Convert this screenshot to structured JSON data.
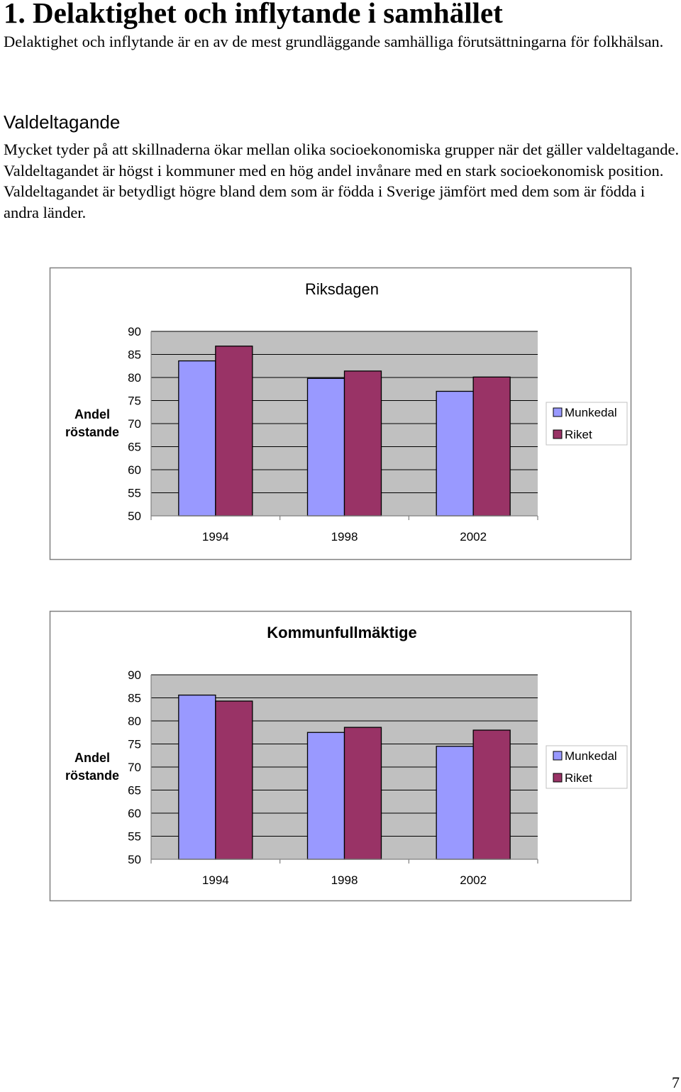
{
  "heading": "1. Delaktighet och inflytande i samhället",
  "intro_paragraph": "Delaktighet och inflytande är en av de mest grundläggande samhälliga förutsättningarna för folkhälsan.",
  "subheading": "Valdeltagande",
  "body_paragraph": "Mycket tyder på att skillnaderna ökar mellan olika socioekonomiska grupper när det gäller valdeltagande. Valdeltagandet är högst i kommuner med en hög andel invånare med en stark socioekonomisk position. Valdeltagandet är betydligt högre bland dem som är födda i Sverige jämfört med dem som är födda i andra länder.",
  "page_number": "7",
  "colors": {
    "munkedal": "#9999ff",
    "riket": "#993366",
    "plot_background": "#c0c0c0",
    "gridline": "#000000"
  },
  "chart_data": [
    {
      "type": "bar",
      "title": "Riksdagen",
      "ylabel": "Andel röstande",
      "xlabel": "",
      "categories": [
        "1994",
        "1998",
        "2002"
      ],
      "series": [
        {
          "name": "Munkedal",
          "values": [
            83.6,
            79.8,
            77.0
          ]
        },
        {
          "name": "Riket",
          "values": [
            86.8,
            81.4,
            80.1
          ]
        }
      ],
      "ylim": [
        50,
        90
      ],
      "yticks": [
        90,
        85,
        80,
        75,
        70,
        65,
        60,
        55,
        50
      ],
      "grid": true,
      "legend": "right"
    },
    {
      "type": "bar",
      "title": "Kommunfullmäktige",
      "ylabel": "Andel röstande",
      "xlabel": "",
      "categories": [
        "1994",
        "1998",
        "2002"
      ],
      "series": [
        {
          "name": "Munkedal",
          "values": [
            85.6,
            77.5,
            74.5
          ]
        },
        {
          "name": "Riket",
          "values": [
            84.3,
            78.6,
            78.0
          ]
        }
      ],
      "ylim": [
        50,
        90
      ],
      "yticks": [
        90,
        85,
        80,
        75,
        70,
        65,
        60,
        55,
        50
      ],
      "grid": true,
      "legend": "right"
    }
  ]
}
